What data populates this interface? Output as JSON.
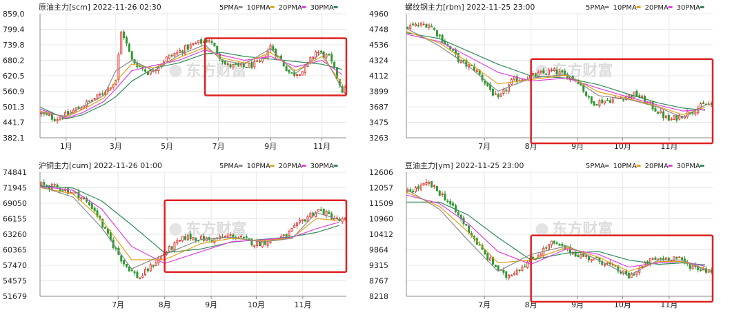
{
  "watermark": "东方财富",
  "colors": {
    "ma5": "#8a8a8a",
    "ma10": "#e2a01a",
    "ma20": "#e040e0",
    "ma30": "#2e8b57",
    "up": "#e23b3b",
    "down": "#2e9a2e",
    "frame": "#e02020",
    "grid": "#e8e8e8",
    "axis": "#888888"
  },
  "legend": [
    {
      "key": "ma5",
      "label": "5PMA"
    },
    {
      "key": "ma10",
      "label": "10PMA"
    },
    {
      "key": "ma20",
      "label": "20PMA"
    },
    {
      "key": "ma30",
      "label": "30PMA"
    }
  ],
  "chart_data": [
    {
      "type": "candlestick",
      "title": "原油主力[scm] 2022-11-26 02:30",
      "yticks": [
        "859.0",
        "799.4",
        "739.8",
        "680.2",
        "620.5",
        "560.9",
        "501.3",
        "441.7",
        "382.1"
      ],
      "ylim": [
        382.1,
        859.0
      ],
      "xticks": [
        "1月",
        "3月",
        "5月",
        "7月",
        "9月",
        "11月"
      ],
      "x_range": [
        "2021-12-01",
        "2022-11-30"
      ],
      "xtick_dates": [
        "2022-01-01",
        "2022-03-01",
        "2022-05-01",
        "2022-07-01",
        "2022-09-01",
        "2022-11-01"
      ],
      "highlight": {
        "from": "2022-06-15",
        "to": "2022-11-30",
        "low": 545,
        "high": 765
      },
      "ma30": [
        [
          "2021-12-01",
          500
        ],
        [
          "2022-01-01",
          455
        ],
        [
          "2022-01-20",
          470
        ],
        [
          "2022-02-15",
          510
        ],
        [
          "2022-03-01",
          540
        ],
        [
          "2022-03-20",
          600
        ],
        [
          "2022-04-15",
          650
        ],
        [
          "2022-05-15",
          670
        ],
        [
          "2022-06-15",
          705
        ],
        [
          "2022-07-05",
          710
        ],
        [
          "2022-08-01",
          695
        ],
        [
          "2022-09-01",
          685
        ],
        [
          "2022-10-01",
          675
        ],
        [
          "2022-11-01",
          665
        ],
        [
          "2022-11-25",
          645
        ]
      ],
      "ma20": [
        [
          "2021-12-01",
          492
        ],
        [
          "2022-01-01",
          458
        ],
        [
          "2022-01-20",
          478
        ],
        [
          "2022-02-15",
          522
        ],
        [
          "2022-03-01",
          570
        ],
        [
          "2022-03-20",
          640
        ],
        [
          "2022-04-15",
          660
        ],
        [
          "2022-05-15",
          680
        ],
        [
          "2022-06-15",
          720
        ],
        [
          "2022-07-05",
          700
        ],
        [
          "2022-08-01",
          680
        ],
        [
          "2022-09-01",
          695
        ],
        [
          "2022-10-01",
          655
        ],
        [
          "2022-11-01",
          680
        ],
        [
          "2022-11-25",
          625
        ]
      ],
      "ma10": [
        [
          "2021-12-01",
          485
        ],
        [
          "2022-01-01",
          462
        ],
        [
          "2022-01-20",
          490
        ],
        [
          "2022-02-15",
          535
        ],
        [
          "2022-03-01",
          600
        ],
        [
          "2022-03-20",
          665
        ],
        [
          "2022-04-15",
          650
        ],
        [
          "2022-05-15",
          690
        ],
        [
          "2022-06-15",
          730
        ],
        [
          "2022-07-05",
          690
        ],
        [
          "2022-08-01",
          670
        ],
        [
          "2022-09-01",
          710
        ],
        [
          "2022-10-01",
          640
        ],
        [
          "2022-11-01",
          695
        ],
        [
          "2022-11-25",
          590
        ]
      ],
      "ma5": [
        [
          "2021-12-01",
          480
        ],
        [
          "2022-01-01",
          465
        ],
        [
          "2022-01-20",
          500
        ],
        [
          "2022-02-15",
          545
        ],
        [
          "2022-03-01",
          640
        ],
        [
          "2022-03-20",
          680
        ],
        [
          "2022-04-15",
          640
        ],
        [
          "2022-05-15",
          700
        ],
        [
          "2022-06-15",
          740
        ],
        [
          "2022-07-05",
          680
        ],
        [
          "2022-08-01",
          665
        ],
        [
          "2022-09-01",
          725
        ],
        [
          "2022-10-01",
          630
        ],
        [
          "2022-11-01",
          710
        ],
        [
          "2022-11-25",
          570
        ]
      ],
      "price": [
        [
          "2021-12-01",
          475
        ],
        [
          "2021-12-20",
          455
        ],
        [
          "2022-01-01",
          470
        ],
        [
          "2022-01-20",
          505
        ],
        [
          "2022-02-10",
          545
        ],
        [
          "2022-03-01",
          600
        ],
        [
          "2022-03-08",
          800
        ],
        [
          "2022-03-20",
          680
        ],
        [
          "2022-04-10",
          630
        ],
        [
          "2022-05-01",
          690
        ],
        [
          "2022-06-01",
          740
        ],
        [
          "2022-06-20",
          760
        ],
        [
          "2022-07-10",
          660
        ],
        [
          "2022-08-01",
          655
        ],
        [
          "2022-08-20",
          670
        ],
        [
          "2022-09-01",
          735
        ],
        [
          "2022-09-25",
          625
        ],
        [
          "2022-10-10",
          640
        ],
        [
          "2022-10-25",
          715
        ],
        [
          "2022-11-10",
          690
        ],
        [
          "2022-11-25",
          565
        ]
      ]
    },
    {
      "type": "candlestick",
      "title": "螺纹钢主力[rbm] 2022-11-25 23:00",
      "yticks": [
        "4960",
        "4748",
        "4536",
        "4324",
        "4112",
        "3899",
        "3687",
        "3475",
        "3263"
      ],
      "ylim": [
        3263,
        4960
      ],
      "xticks": [
        "7月",
        "8月",
        "9月",
        "10月",
        "11月"
      ],
      "x_range": [
        "2022-05-10",
        "2022-11-30"
      ],
      "xtick_dates": [
        "2022-07-01",
        "2022-08-01",
        "2022-09-01",
        "2022-10-01",
        "2022-11-01"
      ],
      "highlight": {
        "from": "2022-08-01",
        "to": "2022-11-30",
        "low": 3263,
        "high": 4340
      },
      "ma30": [
        [
          "2022-05-10",
          4700
        ],
        [
          "2022-06-01",
          4620
        ],
        [
          "2022-06-20",
          4450
        ],
        [
          "2022-07-10",
          4270
        ],
        [
          "2022-08-01",
          4110
        ],
        [
          "2022-08-25",
          4080
        ],
        [
          "2022-09-15",
          3990
        ],
        [
          "2022-10-05",
          3860
        ],
        [
          "2022-10-25",
          3740
        ],
        [
          "2022-11-10",
          3670
        ],
        [
          "2022-11-25",
          3640
        ]
      ],
      "ma20": [
        [
          "2022-05-10",
          4680
        ],
        [
          "2022-06-01",
          4580
        ],
        [
          "2022-06-20",
          4380
        ],
        [
          "2022-07-10",
          4160
        ],
        [
          "2022-08-01",
          4040
        ],
        [
          "2022-08-25",
          4080
        ],
        [
          "2022-09-15",
          3940
        ],
        [
          "2022-10-05",
          3820
        ],
        [
          "2022-10-25",
          3710
        ],
        [
          "2022-11-10",
          3630
        ],
        [
          "2022-11-25",
          3650
        ]
      ],
      "ma10": [
        [
          "2022-05-10",
          4720
        ],
        [
          "2022-06-01",
          4560
        ],
        [
          "2022-06-20",
          4300
        ],
        [
          "2022-07-10",
          4000
        ],
        [
          "2022-08-01",
          4060
        ],
        [
          "2022-08-25",
          4120
        ],
        [
          "2022-09-15",
          3890
        ],
        [
          "2022-10-05",
          3800
        ],
        [
          "2022-10-25",
          3690
        ],
        [
          "2022-11-10",
          3580
        ],
        [
          "2022-11-25",
          3680
        ]
      ],
      "ma5": [
        [
          "2022-05-10",
          4760
        ],
        [
          "2022-06-01",
          4520
        ],
        [
          "2022-06-20",
          4250
        ],
        [
          "2022-07-10",
          3900
        ],
        [
          "2022-08-01",
          4080
        ],
        [
          "2022-08-25",
          4130
        ],
        [
          "2022-09-15",
          3840
        ],
        [
          "2022-10-05",
          3790
        ],
        [
          "2022-10-25",
          3680
        ],
        [
          "2022-11-10",
          3540
        ],
        [
          "2022-11-25",
          3710
        ]
      ],
      "price": [
        [
          "2022-05-10",
          4780
        ],
        [
          "2022-05-25",
          4820
        ],
        [
          "2022-06-05",
          4560
        ],
        [
          "2022-06-15",
          4300
        ],
        [
          "2022-06-25",
          4200
        ],
        [
          "2022-07-10",
          3780
        ],
        [
          "2022-07-20",
          4050
        ],
        [
          "2022-08-01",
          4100
        ],
        [
          "2022-08-15",
          4180
        ],
        [
          "2022-09-01",
          4060
        ],
        [
          "2022-09-10",
          3740
        ],
        [
          "2022-09-25",
          3790
        ],
        [
          "2022-10-10",
          3860
        ],
        [
          "2022-10-20",
          3700
        ],
        [
          "2022-11-01",
          3500
        ],
        [
          "2022-11-15",
          3620
        ],
        [
          "2022-11-25",
          3720
        ]
      ]
    },
    {
      "type": "candlestick",
      "title": "沪铜主力[cum] 2022-11-26 01:00",
      "yticks": [
        "74841",
        "71945",
        "69050",
        "66155",
        "63260",
        "60365",
        "57470",
        "54575",
        "51679"
      ],
      "ylim": [
        51679,
        74841
      ],
      "xticks": [
        "7月",
        "8月",
        "9月",
        "10月",
        "11月"
      ],
      "x_range": [
        "2022-05-10",
        "2022-11-30"
      ],
      "xtick_dates": [
        "2022-07-01",
        "2022-08-01",
        "2022-09-01",
        "2022-10-01",
        "2022-11-01"
      ],
      "highlight": {
        "from": "2022-08-01",
        "to": "2022-11-30",
        "low": 56200,
        "high": 69600
      },
      "ma30": [
        [
          "2022-05-10",
          72300
        ],
        [
          "2022-06-01",
          71900
        ],
        [
          "2022-06-20",
          69500
        ],
        [
          "2022-07-10",
          65000
        ],
        [
          "2022-08-01",
          59800
        ],
        [
          "2022-08-25",
          60500
        ],
        [
          "2022-09-15",
          61800
        ],
        [
          "2022-10-05",
          62300
        ],
        [
          "2022-10-25",
          62800
        ],
        [
          "2022-11-10",
          63600
        ],
        [
          "2022-11-25",
          64900
        ]
      ],
      "ma20": [
        [
          "2022-05-10",
          72200
        ],
        [
          "2022-06-01",
          71500
        ],
        [
          "2022-06-20",
          68000
        ],
        [
          "2022-07-10",
          61000
        ],
        [
          "2022-08-01",
          57800
        ],
        [
          "2022-08-25",
          60000
        ],
        [
          "2022-09-15",
          61900
        ],
        [
          "2022-10-05",
          62200
        ],
        [
          "2022-10-25",
          62700
        ],
        [
          "2022-11-10",
          64300
        ],
        [
          "2022-11-25",
          65500
        ]
      ],
      "ma10": [
        [
          "2022-05-10",
          72000
        ],
        [
          "2022-06-01",
          70800
        ],
        [
          "2022-06-20",
          66000
        ],
        [
          "2022-07-10",
          58500
        ],
        [
          "2022-08-01",
          58500
        ],
        [
          "2022-08-25",
          61500
        ],
        [
          "2022-09-15",
          62500
        ],
        [
          "2022-10-05",
          62000
        ],
        [
          "2022-10-25",
          62600
        ],
        [
          "2022-11-10",
          66200
        ],
        [
          "2022-11-25",
          65800
        ]
      ],
      "ma5": [
        [
          "2022-05-10",
          72200
        ],
        [
          "2022-06-01",
          70200
        ],
        [
          "2022-06-20",
          64500
        ],
        [
          "2022-07-10",
          56800
        ],
        [
          "2022-08-01",
          59500
        ],
        [
          "2022-08-25",
          62300
        ],
        [
          "2022-09-15",
          62700
        ],
        [
          "2022-10-05",
          61800
        ],
        [
          "2022-10-25",
          62500
        ],
        [
          "2022-11-10",
          67300
        ],
        [
          "2022-11-25",
          66000
        ]
      ],
      "price": [
        [
          "2022-05-10",
          72500
        ],
        [
          "2022-05-25",
          71800
        ],
        [
          "2022-06-05",
          70500
        ],
        [
          "2022-06-15",
          68000
        ],
        [
          "2022-06-25",
          62500
        ],
        [
          "2022-07-05",
          57800
        ],
        [
          "2022-07-15",
          55000
        ],
        [
          "2022-08-01",
          59800
        ],
        [
          "2022-08-15",
          62800
        ],
        [
          "2022-09-01",
          62200
        ],
        [
          "2022-09-15",
          63000
        ],
        [
          "2022-10-01",
          61500
        ],
        [
          "2022-10-20",
          62800
        ],
        [
          "2022-11-05",
          66800
        ],
        [
          "2022-11-12",
          67800
        ],
        [
          "2022-11-25",
          65800
        ]
      ]
    },
    {
      "type": "candlestick",
      "title": "豆油主力[ym] 2022-11-25 23:00",
      "yticks": [
        "12606",
        "12057",
        "11509",
        "10960",
        "10412",
        "9864",
        "9315",
        "8767",
        "8218"
      ],
      "ylim": [
        8218,
        12606
      ],
      "xticks": [
        "7月",
        "8月",
        "9月",
        "10月",
        "11月"
      ],
      "x_range": [
        "2022-05-10",
        "2022-11-30"
      ],
      "xtick_dates": [
        "2022-07-01",
        "2022-08-01",
        "2022-09-01",
        "2022-10-01",
        "2022-11-01"
      ],
      "highlight": {
        "from": "2022-08-01",
        "to": "2022-11-30",
        "low": 8218,
        "high": 10370
      },
      "ma30": [
        [
          "2022-05-10",
          11550
        ],
        [
          "2022-06-01",
          11550
        ],
        [
          "2022-06-20",
          11100
        ],
        [
          "2022-07-10",
          10300
        ],
        [
          "2022-08-01",
          9500
        ],
        [
          "2022-08-25",
          9750
        ],
        [
          "2022-09-15",
          9800
        ],
        [
          "2022-10-05",
          9500
        ],
        [
          "2022-10-25",
          9350
        ],
        [
          "2022-11-10",
          9400
        ],
        [
          "2022-11-25",
          9330
        ]
      ],
      "ma20": [
        [
          "2022-05-10",
          11800
        ],
        [
          "2022-06-01",
          11500
        ],
        [
          "2022-06-20",
          10800
        ],
        [
          "2022-07-10",
          9800
        ],
        [
          "2022-08-01",
          9350
        ],
        [
          "2022-08-25",
          9900
        ],
        [
          "2022-09-15",
          9700
        ],
        [
          "2022-10-05",
          9250
        ],
        [
          "2022-10-25",
          9400
        ],
        [
          "2022-11-10",
          9450
        ],
        [
          "2022-11-25",
          9280
        ]
      ],
      "ma10": [
        [
          "2022-05-10",
          11900
        ],
        [
          "2022-06-01",
          11400
        ],
        [
          "2022-06-20",
          10500
        ],
        [
          "2022-07-10",
          9400
        ],
        [
          "2022-08-01",
          9500
        ],
        [
          "2022-08-25",
          9950
        ],
        [
          "2022-09-15",
          9600
        ],
        [
          "2022-10-05",
          9100
        ],
        [
          "2022-10-25",
          9450
        ],
        [
          "2022-11-10",
          9450
        ],
        [
          "2022-11-25",
          9200
        ]
      ],
      "ma5": [
        [
          "2022-05-10",
          12000
        ],
        [
          "2022-06-01",
          11300
        ],
        [
          "2022-06-20",
          10200
        ],
        [
          "2022-07-10",
          9100
        ],
        [
          "2022-08-01",
          9700
        ],
        [
          "2022-08-25",
          10000
        ],
        [
          "2022-09-15",
          9500
        ],
        [
          "2022-10-05",
          8950
        ],
        [
          "2022-10-25",
          9500
        ],
        [
          "2022-11-10",
          9500
        ],
        [
          "2022-11-25",
          9150
        ]
      ],
      "price": [
        [
          "2022-05-10",
          11900
        ],
        [
          "2022-05-25",
          12200
        ],
        [
          "2022-06-05",
          11700
        ],
        [
          "2022-06-20",
          10600
        ],
        [
          "2022-07-01",
          9700
        ],
        [
          "2022-07-15",
          8900
        ],
        [
          "2022-08-01",
          9500
        ],
        [
          "2022-08-15",
          10100
        ],
        [
          "2022-09-01",
          9700
        ],
        [
          "2022-09-20",
          9400
        ],
        [
          "2022-10-05",
          8900
        ],
        [
          "2022-10-20",
          9500
        ],
        [
          "2022-11-05",
          9600
        ],
        [
          "2022-11-15",
          9300
        ],
        [
          "2022-11-25",
          9150
        ]
      ]
    }
  ]
}
